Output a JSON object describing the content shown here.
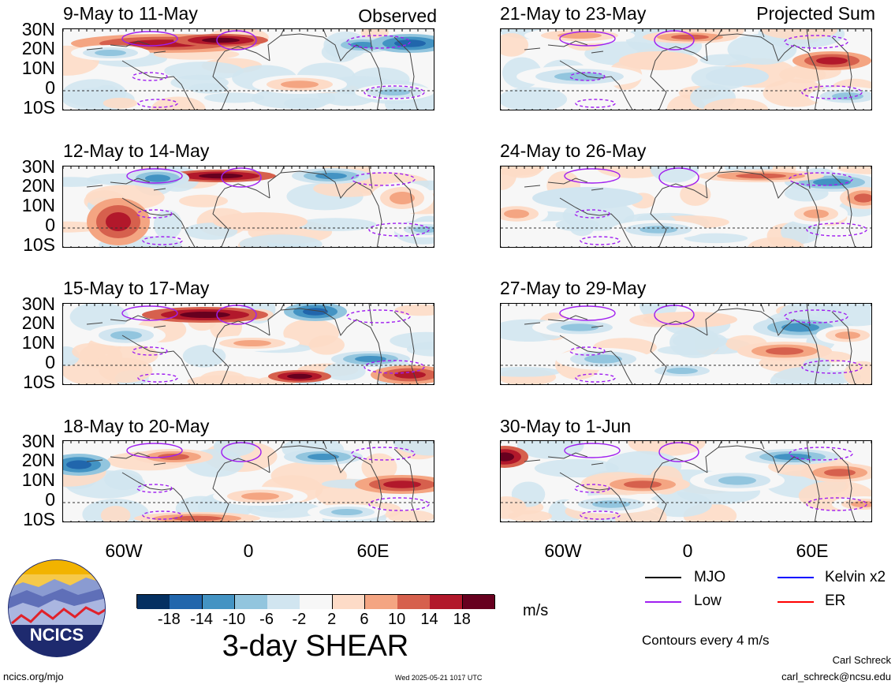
{
  "figure": {
    "title": "3-day SHEAR",
    "units": "m/s",
    "contour_note": "Contours every 4 m/s",
    "left_label": "Observed",
    "right_label": "Projected Sum",
    "lat_labels": [
      "30N",
      "20N",
      "10N",
      "0",
      "10S"
    ],
    "lon_labels": [
      "60W",
      "0",
      "60E"
    ]
  },
  "panels": {
    "left": [
      "9-May to 11-May",
      "12-May to 14-May",
      "15-May to 17-May",
      "18-May to 20-May"
    ],
    "right": [
      "21-May to 23-May",
      "24-May to 26-May",
      "27-May to 29-May",
      "30-May to 1-Jun"
    ]
  },
  "colorbar": {
    "labels": [
      "-18",
      "-14",
      "-10",
      "-6",
      "-2",
      "2",
      "6",
      "10",
      "14",
      "18"
    ],
    "colors": [
      "#053061",
      "#2166ac",
      "#4393c3",
      "#92c5de",
      "#d1e5f0",
      "#f7f7f7",
      "#fddbc7",
      "#f4a582",
      "#d6604d",
      "#b2182b",
      "#67001f"
    ]
  },
  "legend": {
    "items": [
      {
        "label": "MJO",
        "color": "#000000"
      },
      {
        "label": "Kelvin x2",
        "color": "#0000ff"
      },
      {
        "label": "Low",
        "color": "#a020f0"
      },
      {
        "label": "ER",
        "color": "#ff0000"
      }
    ]
  },
  "footer": {
    "logo_text": "NCICS",
    "url": "ncics.org/mjo",
    "timestamp": "Wed 2025-05-21 1017 UTC",
    "author": "Carl Schreck",
    "email": "carl_schreck@ncsu.edu"
  }
}
